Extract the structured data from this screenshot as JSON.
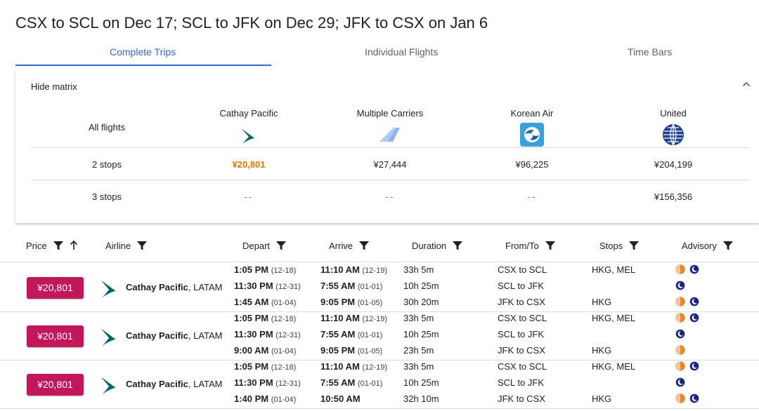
{
  "page": {
    "title": "CSX to SCL on Dec 17; SCL to JFK on Dec 29; JFK to CSX on Jan 6"
  },
  "tabs": [
    "Complete Trips",
    "Individual Flights",
    "Time Bars"
  ],
  "matrix": {
    "toggle_label": "Hide matrix",
    "all_flights_label": "All flights",
    "carriers": [
      {
        "name": "Cathay Pacific",
        "logo": "cathay-pacific-logo-icon"
      },
      {
        "name": "Multiple Carriers",
        "logo": "multiple-carriers-logo-icon"
      },
      {
        "name": "Korean Air",
        "logo": "korean-air-logo-icon"
      },
      {
        "name": "United",
        "logo": "united-logo-icon"
      }
    ],
    "rows": [
      {
        "label": "2 stops",
        "prices": [
          "¥20,801",
          "¥27,444",
          "¥96,225",
          "¥204,199"
        ]
      },
      {
        "label": "3 stops",
        "prices": [
          "--",
          "--",
          "--",
          "¥156,356"
        ]
      }
    ]
  },
  "columns": [
    "Price",
    "Airline",
    "Depart",
    "Arrive",
    "Duration",
    "From/To",
    "Stops",
    "Advisory"
  ],
  "trips": [
    {
      "price": "¥20,801",
      "airline_primary": "Cathay Pacific",
      "airline_secondary": ", LATAM",
      "segments": [
        {
          "depart_time": "1:05 PM",
          "depart_date": "(12-18)",
          "arrive_time": "11:10 AM",
          "arrive_date": "(12-19)",
          "duration": "33h 5m",
          "route": "CSX to SCL",
          "stops": "HKG, MEL",
          "advisory": [
            "sunset-icon",
            "moon-icon"
          ]
        },
        {
          "depart_time": "11:30 PM",
          "depart_date": "(12-31)",
          "arrive_time": "7:55 AM",
          "arrive_date": "(01-01)",
          "duration": "10h 25m",
          "route": "SCL to JFK",
          "stops": "",
          "advisory": [
            "moon-icon"
          ]
        },
        {
          "depart_time": "1:45 AM",
          "depart_date": "(01-04)",
          "arrive_time": "9:05 PM",
          "arrive_date": "(01-05)",
          "duration": "30h 20m",
          "route": "JFK to CSX",
          "stops": "HKG",
          "advisory": [
            "sunset-icon",
            "moon-icon"
          ]
        }
      ]
    },
    {
      "price": "¥20,801",
      "airline_primary": "Cathay Pacific",
      "airline_secondary": ", LATAM",
      "segments": [
        {
          "depart_time": "1:05 PM",
          "depart_date": "(12-18)",
          "arrive_time": "11:10 AM",
          "arrive_date": "(12-19)",
          "duration": "33h 5m",
          "route": "CSX to SCL",
          "stops": "HKG, MEL",
          "advisory": [
            "sunset-icon",
            "moon-icon"
          ]
        },
        {
          "depart_time": "11:30 PM",
          "depart_date": "(12-31)",
          "arrive_time": "7:55 AM",
          "arrive_date": "(01-01)",
          "duration": "10h 25m",
          "route": "SCL to JFK",
          "stops": "",
          "advisory": [
            "moon-icon"
          ]
        },
        {
          "depart_time": "9:00 AM",
          "depart_date": "(01-04)",
          "arrive_time": "9:05 PM",
          "arrive_date": "(01-05)",
          "duration": "23h 5m",
          "route": "JFK to CSX",
          "stops": "HKG",
          "advisory": [
            "sunset-icon"
          ]
        }
      ]
    },
    {
      "price": "¥20,801",
      "airline_primary": "Cathay Pacific",
      "airline_secondary": ", LATAM",
      "segments": [
        {
          "depart_time": "1:05 PM",
          "depart_date": "(12-18)",
          "arrive_time": "11:10 AM",
          "arrive_date": "(12-19)",
          "duration": "33h 5m",
          "route": "CSX to SCL",
          "stops": "HKG, MEL",
          "advisory": [
            "sunset-icon",
            "moon-icon"
          ]
        },
        {
          "depart_time": "11:30 PM",
          "depart_date": "(12-31)",
          "arrive_time": "7:55 AM",
          "arrive_date": "(01-01)",
          "duration": "10h 25m",
          "route": "SCL to JFK",
          "stops": "",
          "advisory": [
            "moon-icon"
          ]
        },
        {
          "depart_time": "1:40 PM",
          "depart_date": "(01-04)",
          "arrive_time": "10:50 AM",
          "arrive_date": "",
          "duration": "32h 10m",
          "route": "JFK to CSX",
          "stops": "HKG",
          "advisory": [
            "sunset-icon",
            "moon-icon"
          ]
        }
      ]
    }
  ],
  "colors": {
    "accent": "#3367d6",
    "price_button": "#c2185b",
    "best_price": "#e37400",
    "divider": "#dadce0"
  }
}
